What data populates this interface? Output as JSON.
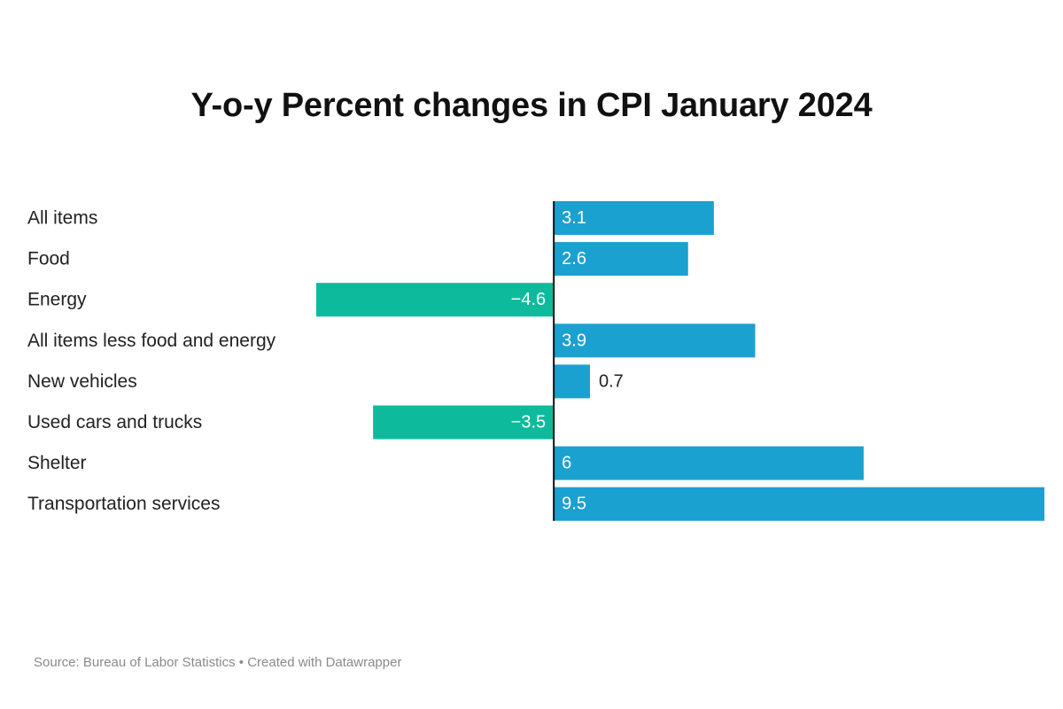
{
  "chart_data": {
    "type": "bar",
    "orientation": "horizontal",
    "title": "Y-o-y Percent changes in CPI January 2024",
    "categories": [
      "All items",
      "Food",
      "Energy",
      "All items less food and energy",
      "New vehicles",
      "Used cars and trucks",
      "Shelter",
      "Transportation services"
    ],
    "values": [
      3.1,
      2.6,
      -4.6,
      3.9,
      0.7,
      -3.5,
      6,
      9.5
    ],
    "value_labels": [
      "3.1",
      "2.6",
      "−4.6",
      "3.9",
      "0.7",
      "−3.5",
      "6",
      "9.5"
    ],
    "xlim": [
      -4.6,
      9.5
    ],
    "grid": false,
    "legend": "none",
    "colors": {
      "positive": "#1ba1d0",
      "negative": "#0dbb9c",
      "axis": "#111111"
    }
  },
  "footer": {
    "source": "Source: Bureau of Labor Statistics • Created with Datawrapper"
  }
}
